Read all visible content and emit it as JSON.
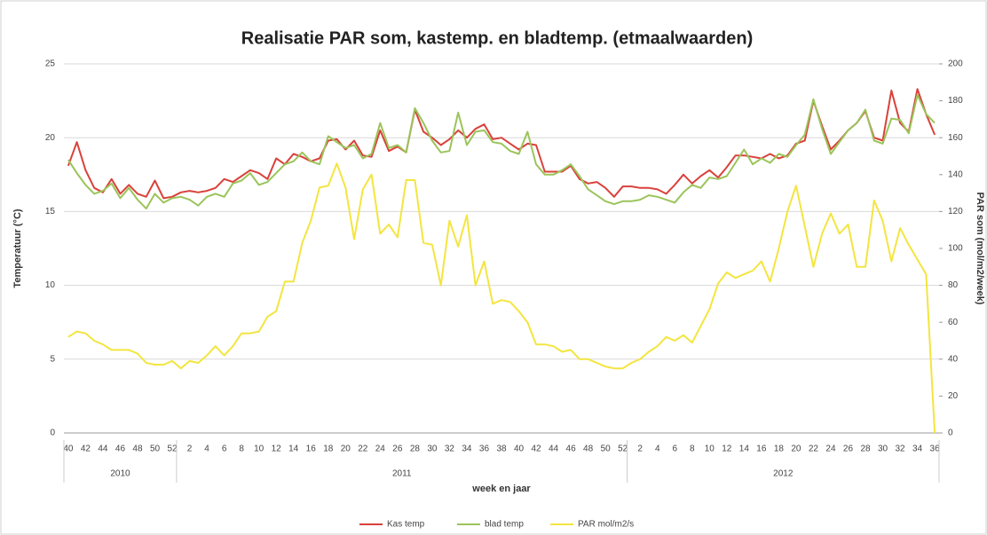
{
  "chart_data": {
    "type": "line",
    "title": "Realisatie PAR som, kastemp. en bladtemp. (etmaalwaarden)",
    "y_label": "Temperatuur (°C)",
    "y2_label": "PAR som (mol/m2/week)",
    "x_label": "week en jaar",
    "x_groups": [
      "2010",
      "2011",
      "2012"
    ],
    "categories": [
      "40",
      null,
      "42",
      null,
      "44",
      null,
      "46",
      null,
      "48",
      null,
      "50",
      null,
      "52",
      null,
      "2",
      null,
      "4",
      null,
      "6",
      null,
      "8",
      null,
      "10",
      null,
      "12",
      null,
      "14",
      null,
      "16",
      null,
      "18",
      null,
      "20",
      null,
      "22",
      null,
      "24",
      null,
      "26",
      null,
      "28",
      null,
      "30",
      null,
      "32",
      null,
      "34",
      null,
      "36",
      null,
      "38",
      null,
      "40",
      null,
      "42",
      null,
      "44",
      null,
      "46",
      null,
      "48",
      null,
      "50",
      null,
      "52",
      null,
      "2",
      null,
      "4",
      null,
      "6",
      null,
      "8",
      null,
      "10",
      null,
      "12",
      null,
      "14",
      null,
      "16",
      null,
      "18",
      null,
      "20",
      null,
      "22",
      null,
      "24",
      null,
      "26",
      null,
      "28",
      null,
      "30",
      null,
      "32",
      null,
      "34",
      null,
      "36"
    ],
    "series": [
      {
        "name": "Kas temp",
        "color": "#d9413b",
        "values": [
          18.1,
          19.7,
          17.8,
          16.6,
          16.3,
          17.2,
          16.2,
          16.8,
          16.2,
          16.0,
          17.1,
          15.9,
          16.0,
          16.3,
          16.4,
          16.3,
          16.4,
          16.6,
          17.2,
          17.0,
          17.4,
          17.8,
          17.6,
          17.2,
          18.6,
          18.2,
          18.9,
          18.7,
          18.4,
          18.6,
          19.8,
          19.9,
          19.2,
          19.8,
          18.8,
          18.7,
          20.5,
          19.1,
          19.4,
          19.0,
          21.9,
          20.4,
          20.0,
          19.5,
          19.9,
          20.5,
          20.0,
          20.6,
          20.9,
          19.9,
          20.0,
          19.6,
          19.2,
          19.6,
          19.5,
          17.7,
          17.7,
          17.7,
          18.1,
          17.2,
          16.9,
          17.0,
          16.6,
          16.0,
          16.7,
          16.7,
          16.6,
          16.6,
          16.5,
          16.2,
          16.8,
          17.5,
          16.9,
          17.4,
          17.8,
          17.3,
          18.0,
          18.8,
          18.8,
          18.7,
          18.6,
          18.9,
          18.6,
          18.8,
          19.6,
          19.8,
          22.5,
          20.8,
          19.2,
          19.8,
          20.5,
          21.0,
          21.8,
          20.0,
          19.8,
          23.2,
          21.0,
          20.4,
          23.3,
          21.6,
          20.2
        ]
      },
      {
        "name": "blad temp",
        "color": "#9bc45a",
        "values": [
          18.5,
          17.6,
          16.8,
          16.2,
          16.4,
          16.9,
          15.9,
          16.6,
          15.8,
          15.2,
          16.2,
          15.6,
          15.9,
          16.0,
          15.8,
          15.4,
          16.0,
          16.2,
          16.0,
          16.9,
          17.1,
          17.6,
          16.8,
          17.0,
          17.6,
          18.2,
          18.4,
          19.0,
          18.4,
          18.2,
          20.1,
          19.7,
          19.3,
          19.5,
          18.6,
          18.9,
          21.0,
          19.3,
          19.5,
          19.0,
          22.0,
          21.0,
          19.8,
          19.0,
          19.1,
          21.7,
          19.5,
          20.4,
          20.5,
          19.7,
          19.6,
          19.1,
          18.9,
          20.4,
          18.2,
          17.5,
          17.5,
          17.8,
          18.2,
          17.4,
          16.5,
          16.1,
          15.7,
          15.5,
          15.7,
          15.7,
          15.8,
          16.1,
          16.0,
          15.8,
          15.6,
          16.3,
          16.8,
          16.6,
          17.3,
          17.2,
          17.4,
          18.3,
          19.2,
          18.2,
          18.6,
          18.3,
          18.9,
          18.7,
          19.5,
          20.2,
          22.6,
          20.6,
          18.9,
          19.7,
          20.5,
          21.0,
          21.9,
          19.8,
          19.6,
          21.3,
          21.2,
          20.3,
          22.9,
          21.6,
          21.0
        ]
      },
      {
        "name": "PAR mol/m2/s",
        "color": "#f3e53f",
        "axis": "y2",
        "values": [
          52,
          55,
          54,
          50,
          48,
          45,
          45,
          45,
          43,
          38,
          37,
          37,
          39,
          35,
          39,
          38,
          42,
          47,
          42,
          47,
          54,
          54,
          55,
          63,
          66,
          82,
          82,
          103,
          115,
          133,
          134,
          146,
          133,
          105,
          132,
          140,
          108,
          113,
          106,
          137,
          137,
          103,
          102,
          80,
          115,
          101,
          118,
          80,
          93,
          70,
          72,
          71,
          66,
          60,
          48,
          48,
          47,
          44,
          45,
          40,
          40,
          38,
          36,
          35,
          35,
          38,
          40,
          44,
          47,
          52,
          50,
          53,
          49,
          58,
          67,
          81,
          87,
          84,
          86,
          88,
          93,
          82,
          100,
          120,
          134,
          112,
          90,
          108,
          119,
          108,
          113,
          90,
          90,
          126,
          115,
          93,
          111,
          102,
          94,
          86,
          0
        ]
      }
    ],
    "ylim": [
      0,
      25
    ],
    "yticks": [
      0,
      5,
      10,
      15,
      20,
      25
    ],
    "y2lim": [
      0,
      200
    ],
    "y2ticks": [
      0,
      20,
      40,
      60,
      80,
      100,
      120,
      140,
      160,
      180,
      200
    ],
    "grid": true
  }
}
